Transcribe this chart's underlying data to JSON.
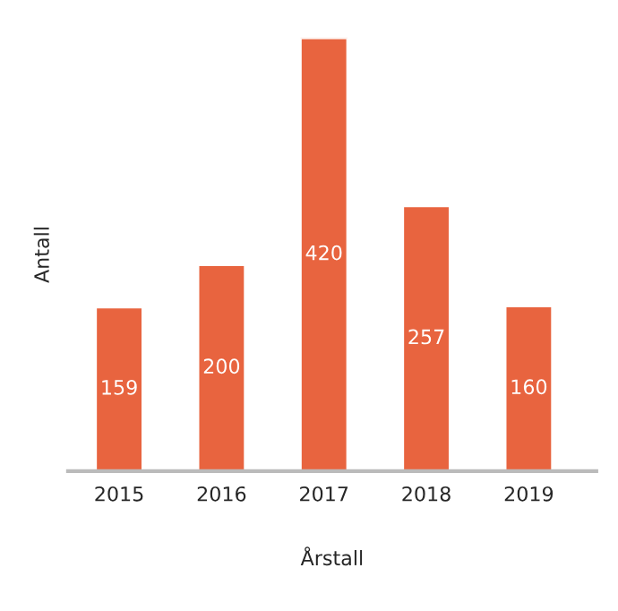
{
  "chart_data": {
    "type": "bar",
    "xlabel": "Årstall",
    "ylabel": "Antall",
    "categories": [
      "2015",
      "2016",
      "2017",
      "2018",
      "2019"
    ],
    "values": [
      159,
      200,
      420,
      257,
      160
    ],
    "color": "#e8643f",
    "data_labels": true,
    "grid": false,
    "legend": false,
    "tick_labels": "x"
  }
}
